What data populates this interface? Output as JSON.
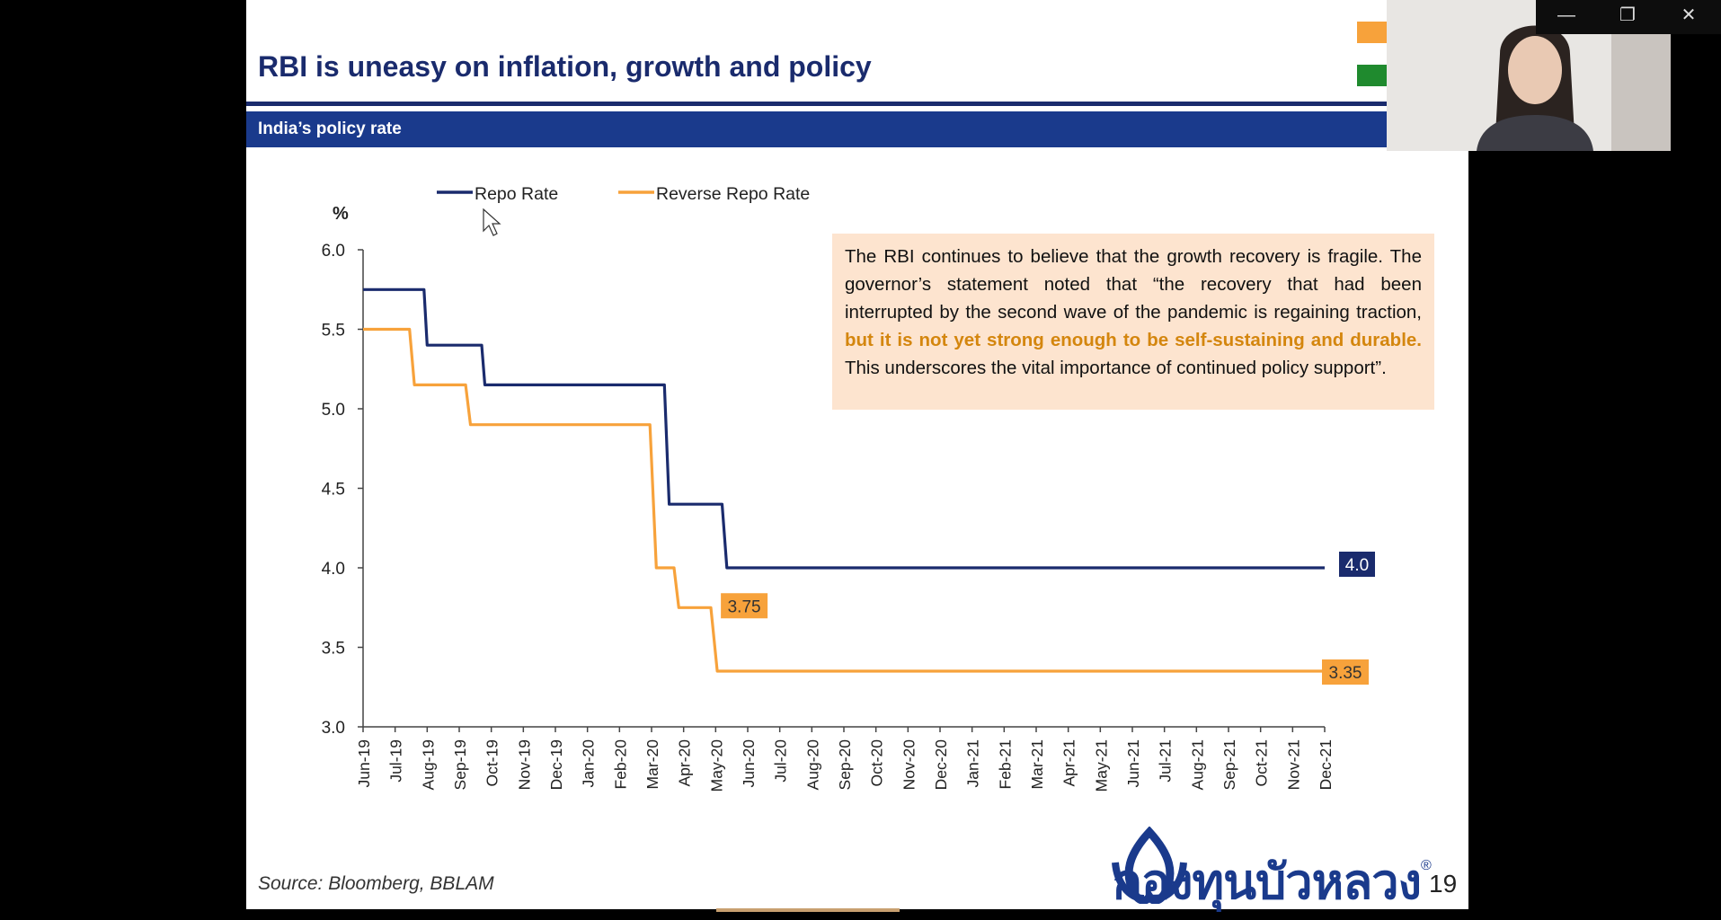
{
  "slide": {
    "title": "RBI is uneasy on inflation, growth and policy",
    "section_label": "India’s policy rate",
    "callout": {
      "before": "The RBI continues to believe that the growth recovery is fragile. The governor’s statement noted that “the recovery that had been interrupted by the second wave of the pandemic is regaining traction, ",
      "highlight": "but it is not yet strong enough to be self-sustaining and durable.",
      "after": " This underscores the vital importance of continued policy support”."
    },
    "source": "Source:  Bloomberg, BBLAM",
    "logo_text": "กองทุนบัวหลวง",
    "registered_mark": "®",
    "page_number": "19",
    "colors": {
      "navy": "#1a2b6d",
      "section_blue": "#1a3a8c",
      "orange": "#f7a23b",
      "callout_bg": "#fde4cf"
    }
  },
  "window_controls": {
    "minimize": "—",
    "restore": "❐",
    "close": "✕"
  },
  "chart_data": {
    "type": "line",
    "ylabel": "%",
    "ylim": [
      3.0,
      6.0
    ],
    "yticks": [
      "3.0",
      "3.5",
      "4.0",
      "4.5",
      "5.0",
      "5.5",
      "6.0"
    ],
    "categories": [
      "Jun-19",
      "Jul-19",
      "Aug-19",
      "Sep-19",
      "Oct-19",
      "Nov-19",
      "Dec-19",
      "Jan-20",
      "Feb-20",
      "Mar-20",
      "Apr-20",
      "May-20",
      "Jun-20",
      "Jul-20",
      "Aug-20",
      "Sep-20",
      "Oct-20",
      "Nov-20",
      "Dec-20",
      "Jan-21",
      "Feb-21",
      "Mar-21",
      "Apr-21",
      "May-21",
      "Jun-21",
      "Jul-21",
      "Aug-21",
      "Sep-21",
      "Oct-21",
      "Nov-21",
      "Dec-21"
    ],
    "legend": "top-left",
    "series": [
      {
        "name": "Repo Rate",
        "color": "#1a2b6d",
        "step_x": [
          0,
          1.9,
          2.0,
          3.7,
          3.8,
          9.4,
          9.55,
          11.2,
          11.35,
          30
        ],
        "step_y": [
          5.75,
          5.75,
          5.4,
          5.4,
          5.15,
          5.15,
          4.4,
          4.4,
          4.0,
          4.0
        ],
        "end_label": "4.0"
      },
      {
        "name": "Reverse Repo Rate",
        "color": "#f7a23b",
        "step_x": [
          0,
          1.45,
          1.6,
          3.2,
          3.35,
          8.95,
          9.15,
          9.7,
          9.85,
          10.85,
          11.05,
          30
        ],
        "step_y": [
          5.5,
          5.5,
          5.15,
          5.15,
          4.9,
          4.9,
          4.0,
          4.0,
          3.75,
          3.75,
          3.35,
          3.35
        ],
        "end_label": "3.35"
      }
    ],
    "annotations": [
      {
        "text": "3.75",
        "x": 11.05,
        "y": 3.75
      }
    ]
  }
}
